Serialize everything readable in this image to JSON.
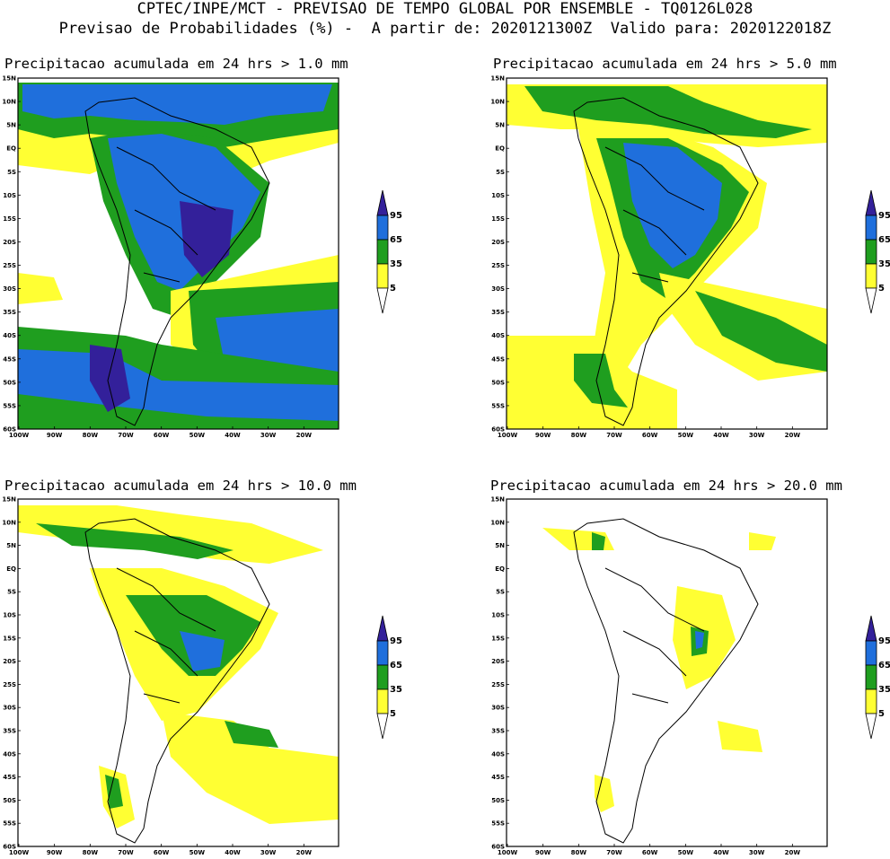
{
  "header": {
    "line1": "CPTEC/INPE/MCT - PREVISAO DE TEMPO GLOBAL POR ENSEMBLE - TQ0126L028",
    "line2": "Previsao de Probabilidades (%) -  A partir de: 2020121300Z  Valido para: 2020122018Z"
  },
  "axes": {
    "lat_labels": [
      "15N",
      "10N",
      "5N",
      "EQ",
      "5S",
      "10S",
      "15S",
      "20S",
      "25S",
      "30S",
      "35S",
      "40S",
      "45S",
      "50S",
      "55S",
      "60S"
    ],
    "lon_labels": [
      "100W",
      "90W",
      "80W",
      "70W",
      "60W",
      "50W",
      "40W",
      "30W",
      "20W"
    ]
  },
  "colorbar": {
    "levels": [
      "5",
      "35",
      "65",
      "95"
    ],
    "colors": {
      "yellow": "#ffff33",
      "green": "#1f9e1f",
      "blue": "#1f6fdc",
      "purple": "#33209a"
    }
  },
  "panels": [
    {
      "title": "Precipitacao acumulada em 24 hrs > 1.0 mm"
    },
    {
      "title": "Precipitacao acumulada em 24 hrs > 5.0 mm"
    },
    {
      "title": "Precipitacao acumulada em 24 hrs > 10.0 mm"
    },
    {
      "title": "Precipitacao acumulada em 24 hrs > 20.0 mm"
    }
  ]
}
